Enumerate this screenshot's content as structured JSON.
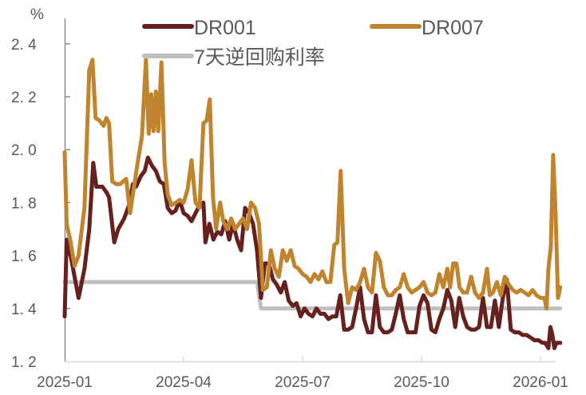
{
  "chart_data": {
    "type": "line",
    "title": "",
    "xlabel": "",
    "ylabel": "%",
    "ylim": [
      1.2,
      2.45
    ],
    "yticks": [
      1.2,
      1.4,
      1.6,
      1.8,
      2.0,
      2.2,
      2.4
    ],
    "ytick_labels": [
      "1. 2",
      "1. 4",
      "1. 6",
      "1. 8",
      "2. 0",
      "2. 2",
      "2. 4"
    ],
    "xticks": [
      "2025-01",
      "2025-04",
      "2025-07",
      "2025-10",
      "2026-01"
    ],
    "grid": false,
    "legend_position": "top",
    "legend": [
      {
        "name": "DR001",
        "color": "#66201E"
      },
      {
        "name": "DR007",
        "color": "#C0842E"
      },
      {
        "name": "7天逆回购利率",
        "color": "#BFBFBF"
      }
    ],
    "x_range_months": [
      0,
      12.4
    ],
    "series": [
      {
        "name": "DR001",
        "color": "#66201E",
        "points": [
          [
            0.0,
            1.37
          ],
          [
            0.05,
            1.66
          ],
          [
            0.15,
            1.6
          ],
          [
            0.25,
            1.52
          ],
          [
            0.35,
            1.44
          ],
          [
            0.5,
            1.55
          ],
          [
            0.62,
            1.7
          ],
          [
            0.72,
            1.95
          ],
          [
            0.8,
            1.86
          ],
          [
            0.95,
            1.86
          ],
          [
            1.05,
            1.84
          ],
          [
            1.12,
            1.82
          ],
          [
            1.25,
            1.65
          ],
          [
            1.35,
            1.7
          ],
          [
            1.5,
            1.74
          ],
          [
            1.62,
            1.79
          ],
          [
            1.72,
            1.87
          ],
          [
            1.8,
            1.86
          ],
          [
            1.92,
            1.9
          ],
          [
            2.02,
            1.92
          ],
          [
            2.1,
            1.97
          ],
          [
            2.2,
            1.94
          ],
          [
            2.3,
            1.92
          ],
          [
            2.4,
            1.88
          ],
          [
            2.5,
            1.87
          ],
          [
            2.6,
            1.78
          ],
          [
            2.7,
            1.76
          ],
          [
            2.8,
            1.77
          ],
          [
            2.9,
            1.81
          ],
          [
            3.0,
            1.76
          ],
          [
            3.1,
            1.75
          ],
          [
            3.2,
            1.73
          ],
          [
            3.3,
            1.76
          ],
          [
            3.4,
            1.79
          ],
          [
            3.5,
            1.8
          ],
          [
            3.55,
            1.65
          ],
          [
            3.65,
            1.72
          ],
          [
            3.75,
            1.66
          ],
          [
            3.85,
            1.69
          ],
          [
            3.95,
            1.68
          ],
          [
            4.05,
            1.73
          ],
          [
            4.15,
            1.66
          ],
          [
            4.25,
            1.72
          ],
          [
            4.35,
            1.66
          ],
          [
            4.45,
            1.62
          ],
          [
            4.55,
            1.78
          ],
          [
            4.65,
            1.76
          ],
          [
            4.75,
            1.72
          ],
          [
            4.85,
            1.62
          ],
          [
            4.95,
            1.44
          ],
          [
            5.05,
            1.57
          ],
          [
            5.15,
            1.57
          ],
          [
            5.25,
            1.51
          ],
          [
            5.35,
            1.49
          ],
          [
            5.45,
            1.46
          ],
          [
            5.55,
            1.5
          ],
          [
            5.65,
            1.43
          ],
          [
            5.75,
            1.41
          ],
          [
            5.85,
            1.42
          ],
          [
            5.95,
            1.37
          ],
          [
            6.05,
            1.4
          ],
          [
            6.15,
            1.38
          ],
          [
            6.25,
            1.37
          ],
          [
            6.35,
            1.4
          ],
          [
            6.45,
            1.38
          ],
          [
            6.55,
            1.38
          ],
          [
            6.65,
            1.36
          ],
          [
            6.75,
            1.37
          ],
          [
            6.85,
            1.37
          ],
          [
            6.95,
            1.45
          ],
          [
            7.05,
            1.32
          ],
          [
            7.15,
            1.32
          ],
          [
            7.25,
            1.33
          ],
          [
            7.35,
            1.4
          ],
          [
            7.45,
            1.48
          ],
          [
            7.55,
            1.36
          ],
          [
            7.65,
            1.31
          ],
          [
            7.75,
            1.31
          ],
          [
            7.85,
            1.45
          ],
          [
            7.95,
            1.33
          ],
          [
            8.05,
            1.31
          ],
          [
            8.15,
            1.31
          ],
          [
            8.25,
            1.32
          ],
          [
            8.35,
            1.38
          ],
          [
            8.45,
            1.45
          ],
          [
            8.55,
            1.36
          ],
          [
            8.65,
            1.31
          ],
          [
            8.75,
            1.31
          ],
          [
            8.85,
            1.31
          ],
          [
            8.95,
            1.41
          ],
          [
            9.05,
            1.45
          ],
          [
            9.15,
            1.42
          ],
          [
            9.25,
            1.32
          ],
          [
            9.35,
            1.31
          ],
          [
            9.45,
            1.36
          ],
          [
            9.55,
            1.4
          ],
          [
            9.65,
            1.47
          ],
          [
            9.75,
            1.43
          ],
          [
            9.85,
            1.33
          ],
          [
            9.95,
            1.44
          ],
          [
            10.05,
            1.37
          ],
          [
            10.15,
            1.33
          ],
          [
            10.25,
            1.32
          ],
          [
            10.35,
            1.32
          ],
          [
            10.45,
            1.33
          ],
          [
            10.55,
            1.44
          ],
          [
            10.65,
            1.33
          ],
          [
            10.75,
            1.33
          ],
          [
            10.85,
            1.43
          ],
          [
            10.95,
            1.33
          ],
          [
            11.05,
            1.44
          ],
          [
            11.15,
            1.51
          ],
          [
            11.25,
            1.32
          ],
          [
            11.35,
            1.31
          ],
          [
            11.45,
            1.31
          ],
          [
            11.55,
            1.3
          ],
          [
            11.65,
            1.3
          ],
          [
            11.75,
            1.29
          ],
          [
            11.85,
            1.28
          ],
          [
            11.95,
            1.28
          ],
          [
            12.05,
            1.27
          ],
          [
            12.12,
            1.27
          ],
          [
            12.2,
            1.25
          ],
          [
            12.25,
            1.33
          ],
          [
            12.3,
            1.3
          ],
          [
            12.35,
            1.25
          ],
          [
            12.4,
            1.27
          ],
          [
            12.5,
            1.27
          ]
        ]
      },
      {
        "name": "DR007",
        "color": "#C0842E",
        "points": [
          [
            0.0,
            1.99
          ],
          [
            0.05,
            1.72
          ],
          [
            0.15,
            1.65
          ],
          [
            0.25,
            1.56
          ],
          [
            0.35,
            1.6
          ],
          [
            0.5,
            1.78
          ],
          [
            0.62,
            2.3
          ],
          [
            0.7,
            2.34
          ],
          [
            0.78,
            2.12
          ],
          [
            0.88,
            2.11
          ],
          [
            0.98,
            2.09
          ],
          [
            1.05,
            2.12
          ],
          [
            1.12,
            2.1
          ],
          [
            1.2,
            1.88
          ],
          [
            1.3,
            1.87
          ],
          [
            1.4,
            1.87
          ],
          [
            1.55,
            1.89
          ],
          [
            1.65,
            1.76
          ],
          [
            1.75,
            1.86
          ],
          [
            1.85,
            1.96
          ],
          [
            1.95,
            2.05
          ],
          [
            2.05,
            2.34
          ],
          [
            2.12,
            2.06
          ],
          [
            2.18,
            2.21
          ],
          [
            2.24,
            2.07
          ],
          [
            2.3,
            2.22
          ],
          [
            2.36,
            2.07
          ],
          [
            2.44,
            2.33
          ],
          [
            2.52,
            1.95
          ],
          [
            2.6,
            1.83
          ],
          [
            2.7,
            1.79
          ],
          [
            2.8,
            1.8
          ],
          [
            2.9,
            1.81
          ],
          [
            3.0,
            1.8
          ],
          [
            3.1,
            1.85
          ],
          [
            3.2,
            1.96
          ],
          [
            3.3,
            1.8
          ],
          [
            3.4,
            1.78
          ],
          [
            3.5,
            2.1
          ],
          [
            3.58,
            2.11
          ],
          [
            3.66,
            2.19
          ],
          [
            3.74,
            1.82
          ],
          [
            3.82,
            1.7
          ],
          [
            3.92,
            1.8
          ],
          [
            4.0,
            1.73
          ],
          [
            4.1,
            1.7
          ],
          [
            4.2,
            1.74
          ],
          [
            4.3,
            1.7
          ],
          [
            4.4,
            1.72
          ],
          [
            4.5,
            1.74
          ],
          [
            4.6,
            1.7
          ],
          [
            4.7,
            1.8
          ],
          [
            4.8,
            1.78
          ],
          [
            4.9,
            1.72
          ],
          [
            5.0,
            1.47
          ],
          [
            5.1,
            1.48
          ],
          [
            5.2,
            1.62
          ],
          [
            5.3,
            1.55
          ],
          [
            5.4,
            1.52
          ],
          [
            5.5,
            1.62
          ],
          [
            5.6,
            1.58
          ],
          [
            5.7,
            1.62
          ],
          [
            5.8,
            1.56
          ],
          [
            5.9,
            1.55
          ],
          [
            6.0,
            1.53
          ],
          [
            6.1,
            1.52
          ],
          [
            6.2,
            1.5
          ],
          [
            6.3,
            1.53
          ],
          [
            6.4,
            1.51
          ],
          [
            6.5,
            1.54
          ],
          [
            6.6,
            1.5
          ],
          [
            6.7,
            1.5
          ],
          [
            6.8,
            1.64
          ],
          [
            6.88,
            1.65
          ],
          [
            6.96,
            1.92
          ],
          [
            7.05,
            1.55
          ],
          [
            7.15,
            1.42
          ],
          [
            7.25,
            1.48
          ],
          [
            7.35,
            1.47
          ],
          [
            7.45,
            1.5
          ],
          [
            7.55,
            1.55
          ],
          [
            7.65,
            1.48
          ],
          [
            7.75,
            1.46
          ],
          [
            7.85,
            1.61
          ],
          [
            7.95,
            1.58
          ],
          [
            8.05,
            1.48
          ],
          [
            8.15,
            1.45
          ],
          [
            8.25,
            1.45
          ],
          [
            8.35,
            1.47
          ],
          [
            8.45,
            1.48
          ],
          [
            8.55,
            1.53
          ],
          [
            8.65,
            1.48
          ],
          [
            8.75,
            1.46
          ],
          [
            8.85,
            1.47
          ],
          [
            8.95,
            1.48
          ],
          [
            9.05,
            1.5
          ],
          [
            9.15,
            1.46
          ],
          [
            9.25,
            1.45
          ],
          [
            9.35,
            1.46
          ],
          [
            9.45,
            1.53
          ],
          [
            9.55,
            1.48
          ],
          [
            9.65,
            1.55
          ],
          [
            9.72,
            1.48
          ],
          [
            9.8,
            1.57
          ],
          [
            9.88,
            1.57
          ],
          [
            9.96,
            1.48
          ],
          [
            10.05,
            1.46
          ],
          [
            10.15,
            1.46
          ],
          [
            10.25,
            1.52
          ],
          [
            10.35,
            1.46
          ],
          [
            10.45,
            1.44
          ],
          [
            10.55,
            1.46
          ],
          [
            10.65,
            1.55
          ],
          [
            10.72,
            1.45
          ],
          [
            10.8,
            1.46
          ],
          [
            10.9,
            1.5
          ],
          [
            11.0,
            1.45
          ],
          [
            11.1,
            1.52
          ],
          [
            11.2,
            1.49
          ],
          [
            11.3,
            1.47
          ],
          [
            11.4,
            1.46
          ],
          [
            11.5,
            1.47
          ],
          [
            11.6,
            1.46
          ],
          [
            11.7,
            1.45
          ],
          [
            11.8,
            1.47
          ],
          [
            11.9,
            1.45
          ],
          [
            12.0,
            1.44
          ],
          [
            12.1,
            1.44
          ],
          [
            12.15,
            1.4
          ],
          [
            12.2,
            1.55
          ],
          [
            12.26,
            1.63
          ],
          [
            12.32,
            1.98
          ],
          [
            12.38,
            1.76
          ],
          [
            12.44,
            1.44
          ],
          [
            12.5,
            1.48
          ]
        ]
      },
      {
        "name": "7天逆回购利率",
        "color": "#BFBFBF",
        "points": [
          [
            0.0,
            1.5
          ],
          [
            4.85,
            1.5
          ],
          [
            4.95,
            1.4
          ],
          [
            12.5,
            1.4
          ]
        ]
      }
    ]
  },
  "legend": {
    "dr001": "DR001",
    "dr007": "DR007",
    "reverse_repo": "7天逆回购利率"
  },
  "axis": {
    "unit": "%"
  }
}
